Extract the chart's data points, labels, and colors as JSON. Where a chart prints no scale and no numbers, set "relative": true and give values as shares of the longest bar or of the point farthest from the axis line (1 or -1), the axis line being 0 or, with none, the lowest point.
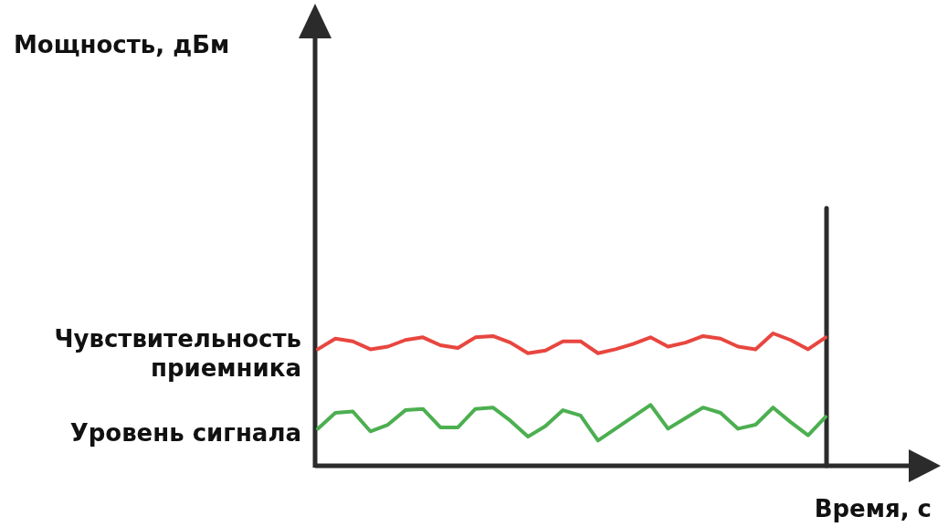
{
  "chart_data": {
    "type": "line",
    "relative": true,
    "xlabel": "Время, с",
    "annotations": [
      "Мощность, дБм"
    ],
    "legend": false,
    "marker": "none",
    "line_style": "solid",
    "categories": [
      null,
      null,
      null,
      null,
      null,
      null,
      null,
      null,
      null,
      null,
      null,
      null,
      null,
      null,
      null,
      null,
      null,
      null,
      null,
      null,
      null,
      null,
      null,
      null,
      null,
      null,
      null,
      null,
      null,
      null
    ],
    "series": [
      {
        "name": "Чувствительность приемника",
        "color": "#e8463f",
        "values": [
          0.88,
          0.96,
          0.94,
          0.88,
          0.9,
          0.95,
          0.97,
          0.91,
          0.89,
          0.97,
          0.98,
          0.93,
          0.85,
          0.87,
          0.94,
          0.94,
          0.85,
          0.88,
          0.92,
          0.97,
          0.9,
          0.93,
          0.98,
          0.96,
          0.9,
          0.88,
          1,
          0.95,
          0.88,
          0.97
        ]
      },
      {
        "name": "Уровень сигнала",
        "color": "#4caf50",
        "values": [
          0.28,
          0.4,
          0.41,
          0.26,
          0.31,
          0.42,
          0.43,
          0.29,
          0.29,
          0.43,
          0.44,
          0.34,
          0.22,
          0.3,
          0.42,
          0.38,
          0.19,
          0.28,
          0.37,
          0.46,
          0.28,
          0.36,
          0.44,
          0.4,
          0.28,
          0.31,
          0.44,
          0.33,
          0.23,
          0.37
        ]
      }
    ]
  }
}
